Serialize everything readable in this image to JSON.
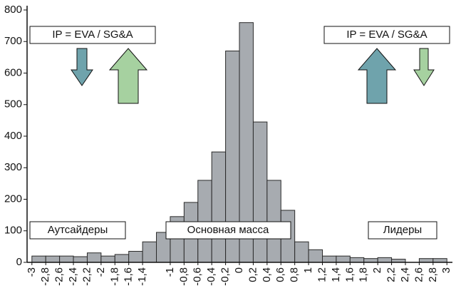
{
  "chart_data": {
    "type": "histogram",
    "bins": [
      -3,
      -2.8,
      -2.6,
      -2.4,
      -2.2,
      -2,
      -1.8,
      -1.6,
      -1.4,
      -1.2,
      -1,
      -0.8,
      -0.6,
      -0.4,
      -0.2,
      0,
      0.2,
      0.4,
      0.6,
      0.8,
      1,
      1.2,
      1.4,
      1.6,
      1.8,
      2,
      2.2,
      2.4,
      2.6,
      2.8,
      3
    ],
    "values": [
      20,
      20,
      20,
      18,
      30,
      20,
      25,
      35,
      65,
      95,
      145,
      190,
      260,
      350,
      670,
      760,
      445,
      260,
      165,
      65,
      40,
      20,
      20,
      15,
      12,
      15,
      10,
      0,
      12,
      12
    ],
    "color": "#a7abb0",
    "xlim": [
      -3.07,
      3.08
    ],
    "ylim": [
      0,
      800
    ],
    "yticks": [
      0,
      100,
      200,
      300,
      400,
      500,
      600,
      700,
      800
    ],
    "xticks": [
      -3,
      {
        "value": -2.8,
        "label": "-2,8"
      },
      {
        "value": -2.6,
        "label": "-2,6"
      },
      {
        "value": -2.4,
        "label": "-2,4"
      },
      {
        "value": -2.2,
        "label": "-2,2"
      },
      -2,
      {
        "value": -1.8,
        "label": "-1,8"
      },
      {
        "value": -1.6,
        "label": "-1,6"
      },
      {
        "value": -1.4,
        "label": "-1,4"
      },
      -1,
      {
        "value": -0.8,
        "label": "-0,8"
      },
      {
        "value": -0.6,
        "label": "-0,6"
      },
      {
        "value": -0.4,
        "label": "-0,4"
      },
      {
        "value": -0.2,
        "label": "-0,2"
      },
      0,
      {
        "value": 0.2,
        "label": "0,2"
      },
      {
        "value": 0.4,
        "label": "0,4"
      },
      {
        "value": 0.6,
        "label": "0,6"
      },
      {
        "value": 0.8,
        "label": "0,8"
      },
      1,
      {
        "value": 1.2,
        "label": "1,2"
      },
      {
        "value": 1.4,
        "label": "1,4"
      },
      {
        "value": 1.6,
        "label": "1,6"
      },
      {
        "value": 1.8,
        "label": "1,8"
      },
      2,
      {
        "value": 2.2,
        "label": "2,2"
      },
      {
        "value": 2.4,
        "label": "2,4"
      },
      {
        "value": 2.6,
        "label": "2,6"
      },
      {
        "value": 2.8,
        "label": "2,8"
      },
      3
    ],
    "annotations": [
      "IP = EVA / SG&A",
      "IP = EVA / SG&A",
      "Аутсайдеры",
      "Основная масса",
      "Лидеры"
    ]
  }
}
